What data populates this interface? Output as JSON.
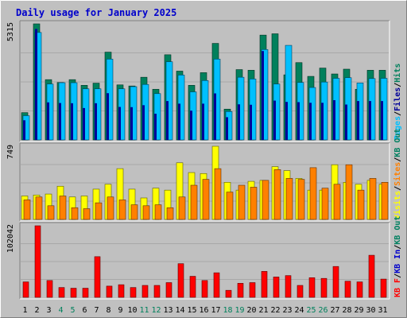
{
  "chart_data": {
    "type": "bar",
    "title": "Daily usage for January 2025",
    "categories": [
      "1",
      "2",
      "3",
      "4",
      "5",
      "6",
      "7",
      "8",
      "9",
      "10",
      "11",
      "12",
      "13",
      "14",
      "15",
      "16",
      "17",
      "18",
      "19",
      "20",
      "21",
      "22",
      "23",
      "24",
      "25",
      "26",
      "27",
      "28",
      "29",
      "30",
      "31"
    ],
    "weekend_days": [
      "4",
      "5",
      "11",
      "12",
      "18",
      "19",
      "25",
      "26"
    ],
    "colors": {
      "background": "#c0c0c0",
      "title": "#0000cc",
      "hits": "#00805c",
      "files": "#00c0ff",
      "pages": "#000099",
      "visits": "#ffff00",
      "sites": "#ff8000",
      "kbin": "#0000cc",
      "kbout": "#008060",
      "kbf": "#ff0000",
      "weekday_label": "#000000",
      "weekend_label": "#00805c"
    },
    "panels": [
      {
        "id": "hits",
        "max_label": "5315",
        "ylim": [
          0,
          5315
        ],
        "legend": [
          "Pages",
          "/",
          "Files",
          "/",
          "Hits"
        ],
        "legend_colors": [
          "#00c0ff",
          "#000000",
          "#000099",
          "#000000",
          "#00805c"
        ],
        "series": [
          {
            "name": "Hits",
            "values": [
              1250,
              5315,
              2760,
              2630,
              2760,
              2500,
              2600,
              4020,
              2520,
              2470,
              2870,
              2320,
              3900,
              3150,
              2500,
              3080,
              4420,
              1410,
              3220,
              3190,
              4800,
              4860,
              2980,
              3540,
              2910,
              3290,
              3020,
              3240,
              2320,
              3190,
              3190
            ]
          },
          {
            "name": "Files",
            "values": [
              1110,
              4920,
              2560,
              2620,
              2620,
              2340,
              2340,
              3700,
              2340,
              2440,
              2540,
              2120,
              3580,
              2970,
              2200,
              2720,
              3700,
              1300,
              2870,
              2790,
              4140,
              2560,
              4330,
              2630,
              2400,
              2650,
              2820,
              2850,
              2610,
              2810,
              2820
            ]
          },
          {
            "name": "Pages",
            "values": [
              900,
              5080,
              1720,
              1690,
              1680,
              1460,
              1680,
              2140,
              1510,
              1500,
              1590,
              1200,
              1780,
              1660,
              1340,
              1660,
              2130,
              1040,
              1630,
              1610,
              4070,
              1800,
              1740,
              1730,
              1700,
              1700,
              1820,
              1620,
              1780,
              1780,
              1780
            ]
          }
        ]
      },
      {
        "id": "visits",
        "max_label": "749",
        "ylim": [
          0,
          749
        ],
        "legend": [
          "Visits",
          "/",
          "Sites",
          "/",
          "KB Out"
        ],
        "legend_colors": [
          "#ffff00",
          "#000000",
          "#ff8000",
          "#000000",
          "#008060"
        ],
        "series": [
          {
            "name": "Visits",
            "values": [
              240,
              250,
              260,
              340,
              230,
              240,
              310,
              360,
              520,
              310,
              220,
              320,
              300,
              580,
              480,
              470,
              749,
              380,
              300,
              390,
              400,
              540,
              500,
              420,
              300,
              300,
              560,
              380,
              360,
              400,
              360
            ]
          },
          {
            "name": "Sites",
            "values": [
              200,
              230,
              140,
              240,
              120,
              110,
              170,
              230,
              200,
              150,
              140,
              150,
              120,
              230,
              350,
              410,
              520,
              280,
              350,
              330,
              400,
              510,
              420,
              410,
              530,
              320,
              360,
              560,
              300,
              420,
              380
            ]
          }
        ]
      },
      {
        "id": "kbf",
        "max_label": "102042",
        "ylim": [
          0,
          102042
        ],
        "legend": [
          "KB F",
          "/",
          "KB In",
          "/",
          "KB Out"
        ],
        "legend_colors": [
          "#ff0000",
          "#000000",
          "#0000cc",
          "#000000",
          "#008060"
        ],
        "series": [
          {
            "name": "KB F",
            "values": [
              22000,
              102042,
              24000,
              14000,
              13000,
              13000,
              58000,
              16000,
              18000,
              14000,
              17000,
              17000,
              21000,
              48000,
              30000,
              24000,
              35000,
              10000,
              20000,
              21000,
              37000,
              29000,
              31000,
              17000,
              28000,
              27000,
              44000,
              23000,
              22000,
              60000,
              26000
            ]
          }
        ]
      }
    ]
  }
}
